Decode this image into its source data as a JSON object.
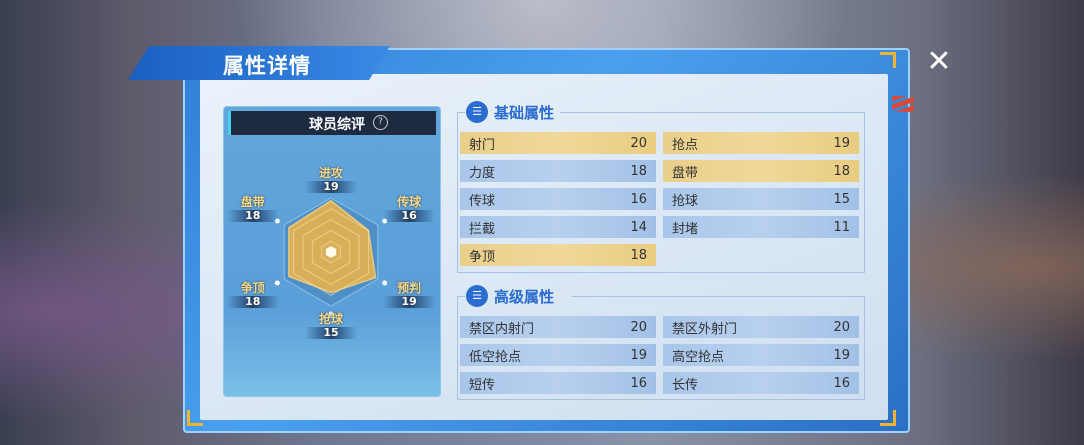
{
  "title": "属性详情",
  "close_icon": "close-x-icon",
  "colors": {
    "accent_blue": "#2a6cd0",
    "gold_row": "#f0d898",
    "blue_row": "#b8d0ee",
    "radar_fill": "#e9b24e"
  },
  "rating": {
    "title": "球员综评",
    "help": "?",
    "axes": [
      {
        "label": "进攻",
        "value": 19
      },
      {
        "label": "传球",
        "value": 16
      },
      {
        "label": "预判",
        "value": 19
      },
      {
        "label": "抢球",
        "value": 15
      },
      {
        "label": "争顶",
        "value": 18
      },
      {
        "label": "盘带",
        "value": 18
      }
    ],
    "max": 20
  },
  "basic": {
    "title": "基础属性",
    "rows": [
      {
        "label": "射门",
        "value": "20",
        "style": "gold"
      },
      {
        "label": "抢点",
        "value": "19",
        "style": "gold"
      },
      {
        "label": "力度",
        "value": "18",
        "style": "blue"
      },
      {
        "label": "盘带",
        "value": "18",
        "style": "gold"
      },
      {
        "label": "传球",
        "value": "16",
        "style": "blue"
      },
      {
        "label": "抢球",
        "value": "15",
        "style": "blue"
      },
      {
        "label": "拦截",
        "value": "14",
        "style": "blue"
      },
      {
        "label": "封堵",
        "value": "11",
        "style": "blue"
      },
      {
        "label": "争顶",
        "value": "18",
        "style": "gold"
      }
    ]
  },
  "advanced": {
    "title": "高级属性",
    "rows": [
      {
        "label": "禁区内射门",
        "value": "20",
        "style": "blue"
      },
      {
        "label": "禁区外射门",
        "value": "20",
        "style": "blue"
      },
      {
        "label": "低空抢点",
        "value": "19",
        "style": "blue"
      },
      {
        "label": "高空抢点",
        "value": "19",
        "style": "blue"
      },
      {
        "label": "短传",
        "value": "16",
        "style": "blue"
      },
      {
        "label": "长传",
        "value": "16",
        "style": "blue"
      }
    ]
  }
}
